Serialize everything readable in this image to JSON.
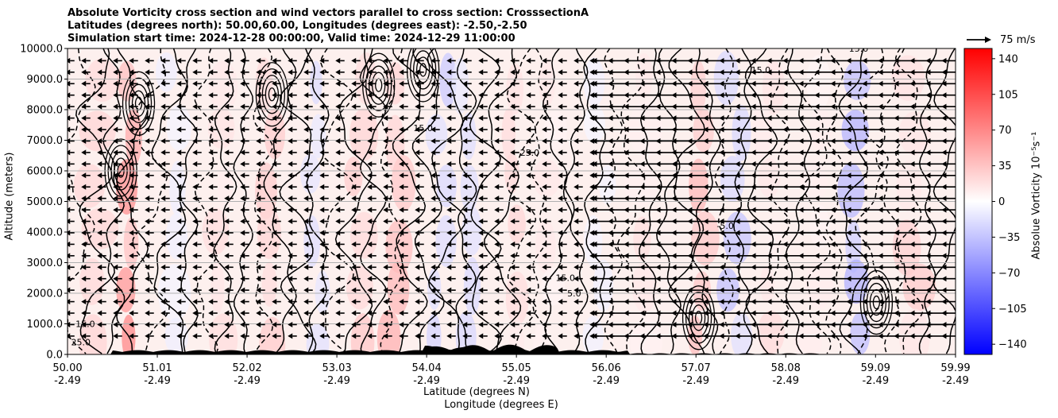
{
  "chart_data": {
    "type": "heatmap",
    "title_lines": [
      "Absolute Vorticity cross section and wind vectors parallel to cross section: CrosssectionA",
      "Latitudes (degrees north): 50.00,60.00, Longitudes (degrees east): -2.50,-2.50",
      "Simulation start time: 2024-12-28 00:00:00, Valid time: 2024-12-29 11:00:00"
    ],
    "xlabel_lat": "Latitude (degrees N)",
    "xlabel_lon": "Longitude (degrees E)",
    "ylabel": "Altitude (meters)",
    "xlim": [
      50.0,
      59.99
    ],
    "ylim": [
      0,
      10000
    ],
    "x_ticks": [
      {
        "value": 50.0,
        "lat": "50.00",
        "lon": "-2.49"
      },
      {
        "value": 51.01,
        "lat": "51.01",
        "lon": "-2.49"
      },
      {
        "value": 52.02,
        "lat": "52.02",
        "lon": "-2.49"
      },
      {
        "value": 53.03,
        "lat": "53.03",
        "lon": "-2.49"
      },
      {
        "value": 54.04,
        "lat": "54.04",
        "lon": "-2.49"
      },
      {
        "value": 55.05,
        "lat": "55.05",
        "lon": "-2.49"
      },
      {
        "value": 56.06,
        "lat": "56.06",
        "lon": "-2.49"
      },
      {
        "value": 57.07,
        "lat": "57.07",
        "lon": "-2.49"
      },
      {
        "value": 58.08,
        "lat": "58.08",
        "lon": "-2.49"
      },
      {
        "value": 59.09,
        "lat": "59.09",
        "lon": "-2.49"
      },
      {
        "value": 59.99,
        "lat": "59.99",
        "lon": "-2.49"
      }
    ],
    "y_ticks": [
      {
        "value": 0,
        "label": "0.0"
      },
      {
        "value": 1000,
        "label": "1000.0"
      },
      {
        "value": 2000,
        "label": "2000.0"
      },
      {
        "value": 3000,
        "label": "3000.0"
      },
      {
        "value": 4000,
        "label": "4000.0"
      },
      {
        "value": 5000,
        "label": "5000.0"
      },
      {
        "value": 6000,
        "label": "6000.0"
      },
      {
        "value": 7000,
        "label": "7000.0"
      },
      {
        "value": 8000,
        "label": "8000.0"
      },
      {
        "value": 9000,
        "label": "9000.0"
      },
      {
        "value": 10000,
        "label": "10000.0"
      }
    ],
    "grid": "horizontal",
    "colorbar": {
      "label": "Absolue Vorticity 10⁻⁵s⁻¹",
      "range": [
        -150,
        150
      ],
      "ticks": [
        {
          "value": 140,
          "label": "140"
        },
        {
          "value": 105,
          "label": "105"
        },
        {
          "value": 70,
          "label": "70"
        },
        {
          "value": 35,
          "label": "35"
        },
        {
          "value": 0,
          "label": "0"
        },
        {
          "value": -35,
          "label": "−35"
        },
        {
          "value": -70,
          "label": "−70"
        },
        {
          "value": -105,
          "label": "−105"
        },
        {
          "value": -140,
          "label": "−140"
        }
      ],
      "colormap": "bwr"
    },
    "quiver_key": {
      "label": "75 m/s",
      "value": 75
    },
    "contour_labels": [
      {
        "x": 57.8,
        "y": 9200,
        "text": "15.0"
      },
      {
        "x": 57.4,
        "y": 4100,
        "text": "-5.0"
      },
      {
        "x": 55.6,
        "y": 2400,
        "text": "15.0"
      },
      {
        "x": 55.7,
        "y": 1900,
        "text": "5.0"
      },
      {
        "x": 55.2,
        "y": 6500,
        "text": "25.0"
      },
      {
        "x": 50.2,
        "y": 900,
        "text": "15.0"
      },
      {
        "x": 50.15,
        "y": 300,
        "text": "25.0"
      },
      {
        "x": 54.0,
        "y": 7300,
        "text": "15.0"
      },
      {
        "x": 58.9,
        "y": 9900,
        "text": "15.0"
      }
    ],
    "wind_field": {
      "direction": "southward along section (northerly flow)",
      "regions": [
        {
          "lat_range": [
            50.0,
            56.0
          ],
          "speed_ms": 5,
          "note": "weak arrows"
        },
        {
          "lat_range": [
            56.0,
            59.99
          ],
          "speed_ms": 20,
          "note": "strong arrows toward lower latitude"
        }
      ]
    },
    "terrain_max_m": 450
  }
}
